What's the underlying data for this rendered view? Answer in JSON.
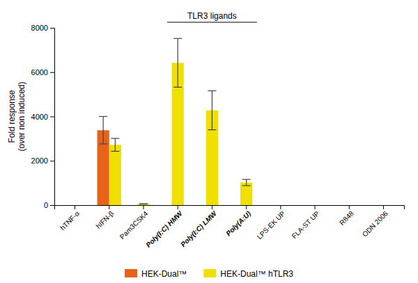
{
  "chart_data": {
    "type": "bar",
    "y_label": "Fold response\n(over non induced)",
    "categories": [
      "hTNF-α",
      "hIFN-β",
      "Pam3CSK4",
      "Poly(I:C) HMW",
      "Poly(I:C) LMW",
      "Poly(A:U)",
      "LPS-EK UP",
      "FLA-ST UP",
      "R848",
      "ODN 2006"
    ],
    "series": [
      {
        "name": "HEK-Dual™",
        "color": "#E8621A",
        "values": [
          0,
          3380,
          0,
          0,
          0,
          0,
          0,
          0,
          0,
          0
        ],
        "errors": [
          0,
          620,
          0,
          0,
          0,
          0,
          0,
          0,
          0,
          0
        ]
      },
      {
        "name": "HEK-Dual™ hTLR3",
        "color": "#F0E000",
        "values": [
          0,
          2720,
          55,
          6420,
          4280,
          1020,
          0,
          0,
          0,
          0
        ],
        "errors": [
          0,
          290,
          0,
          1100,
          880,
          140,
          0,
          0,
          0,
          0
        ]
      }
    ],
    "ylim": [
      0,
      8000
    ],
    "yticks": [
      0,
      2000,
      4000,
      6000,
      8000
    ],
    "grid": false,
    "legend": "bottom",
    "annotations": [
      {
        "text": "TLR3 ligands",
        "categories": [
          "Poly(I:C) HMW",
          "Poly(I:C) LMW",
          "Poly(A:U)"
        ]
      }
    ]
  }
}
